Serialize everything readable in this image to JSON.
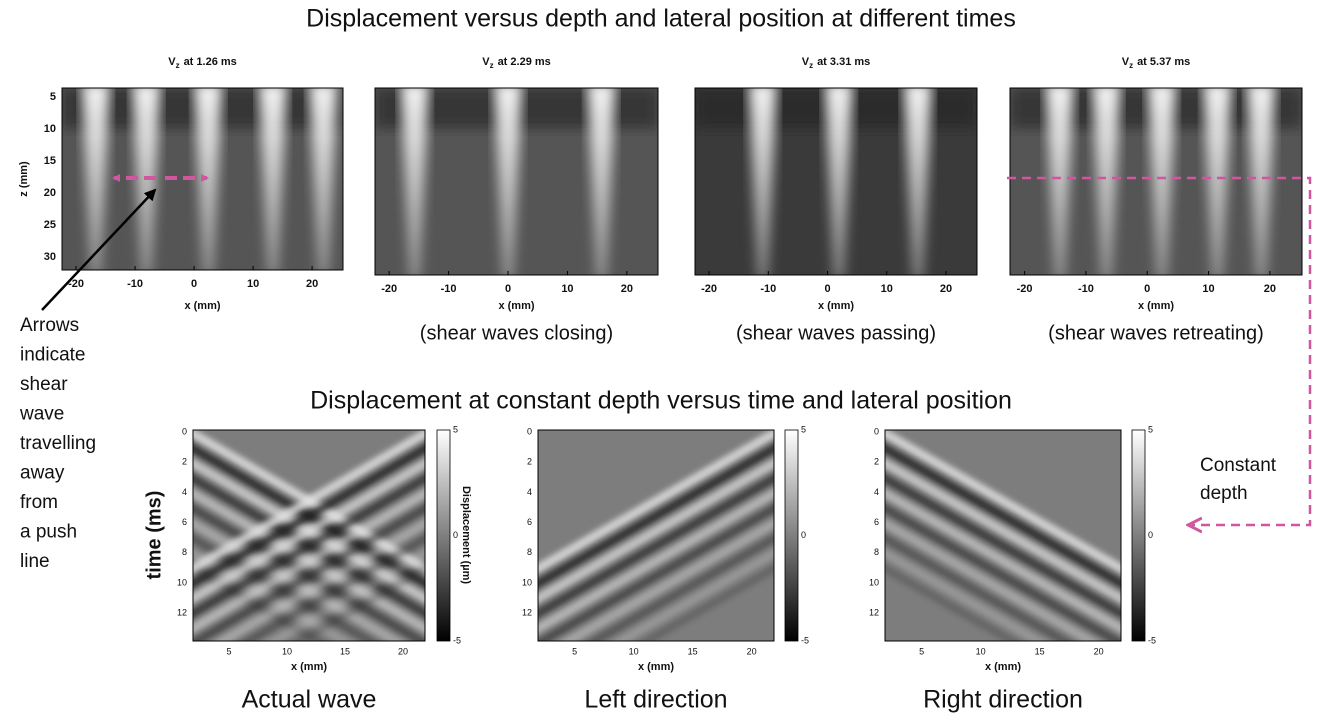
{
  "title": "Displacement versus depth and lateral position at different times",
  "top_panels": [
    {
      "symbol": "V",
      "subscript": "z",
      "label": "at 1.26 ms"
    },
    {
      "symbol": "V",
      "subscript": "z",
      "label": "at 2.29 ms",
      "caption": "(shear waves closing)"
    },
    {
      "symbol": "V",
      "subscript": "z",
      "label": "at 3.31 ms",
      "caption": "(shear waves passing)"
    },
    {
      "symbol": "V",
      "subscript": "z",
      "label": "at 5.37 ms",
      "caption": "(shear waves retreating)"
    }
  ],
  "top_axes": {
    "ylabel": "z (mm)",
    "xlabel": "x (mm)",
    "yticks": [
      "5",
      "10",
      "15",
      "20",
      "25",
      "30"
    ],
    "xticks": [
      "-20",
      "-10",
      "0",
      "10",
      "20"
    ]
  },
  "annotation": [
    "Arrows",
    "indicate",
    "shear",
    "wave",
    "travelling",
    "away",
    "from",
    "a push",
    "line"
  ],
  "subtitle": "Displacement at constant depth versus time and lateral position",
  "bottom_panels": [
    {
      "caption": "Actual wave"
    },
    {
      "caption": "Left direction"
    },
    {
      "caption": "Right direction"
    }
  ],
  "bottom_axes": {
    "ylabel": "time (ms)",
    "xlabel": "x (mm)",
    "yticks": [
      "0",
      "2",
      "4",
      "6",
      "8",
      "10",
      "12"
    ],
    "xticks": [
      "5",
      "10",
      "15",
      "20"
    ],
    "colorbar_ticks": [
      "5",
      "0",
      "-5"
    ],
    "colorbar_label": "Displacement (µm)"
  },
  "constant_depth": [
    "Constant",
    "depth"
  ]
}
